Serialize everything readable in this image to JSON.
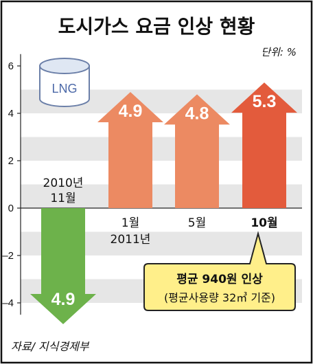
{
  "chart_data": {
    "type": "bar",
    "title": "도시가스 요금 인상 현황",
    "unit_label": "단위: %",
    "ylim": [
      -4.5,
      6.5
    ],
    "yticks": [
      {
        "value": 6,
        "label": "6"
      },
      {
        "value": 4,
        "label": "4"
      },
      {
        "value": 2,
        "label": "2"
      },
      {
        "value": 0,
        "label": "0"
      },
      {
        "value": -2,
        "label": "–2"
      },
      {
        "value": -4,
        "label": "–4"
      }
    ],
    "grid": true,
    "categories": [
      {
        "line1": "2010년",
        "line2": "11월"
      },
      {
        "line1": "1월",
        "line2": "2011년"
      },
      {
        "line1": "5월",
        "line2": ""
      },
      {
        "line1": "10월",
        "line2": ""
      }
    ],
    "values": [
      -4.9,
      4.9,
      4.8,
      5.3
    ],
    "value_labels": [
      "4.9",
      "4.9",
      "4.8",
      "5.3"
    ],
    "colors": [
      "#6db24b",
      "#ec8a62",
      "#ec8a62",
      "#e35b3c"
    ],
    "callout": {
      "line1": "평균 940원 인상",
      "line2": "(평균사용량 32㎥ 기준)"
    },
    "icon": {
      "name": "lng-tank-icon",
      "label": "LNG"
    },
    "source": "자료/ 지식경제부"
  }
}
